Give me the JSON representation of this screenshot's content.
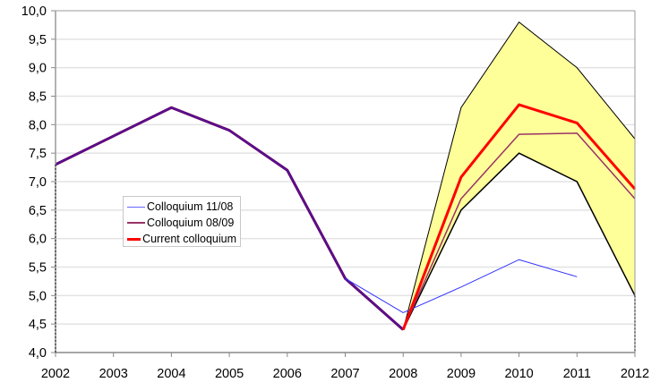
{
  "chart_data": {
    "type": "line",
    "title": "",
    "xlabel": "",
    "ylabel": "",
    "ylim": [
      4.0,
      10.0
    ],
    "yticks": [
      "4,0",
      "4,5",
      "5,0",
      "5,5",
      "6,0",
      "6,5",
      "7,0",
      "7,5",
      "8,0",
      "8,5",
      "9,0",
      "9,5",
      "10,0"
    ],
    "x": [
      2002,
      2003,
      2004,
      2005,
      2006,
      2007,
      2008,
      2009,
      2010,
      2011,
      2012
    ],
    "xticks": [
      "2002",
      "2003",
      "2004",
      "2005",
      "2006",
      "2007",
      "2008",
      "2009",
      "2010",
      "2011",
      "2012"
    ],
    "grid": true,
    "legend_position": "inside-left-middle",
    "historical": {
      "x": [
        2002,
        2003,
        2004,
        2005,
        2006,
        2007,
        2008
      ],
      "values": [
        7.3,
        7.8,
        8.3,
        7.9,
        7.2,
        5.3,
        4.4
      ],
      "color": "#660066"
    },
    "band": {
      "name": "Forecast range",
      "color": "#ffff99",
      "x": [
        2008,
        2009,
        2010,
        2011,
        2012
      ],
      "upper": [
        4.4,
        8.3,
        9.8,
        9.0,
        7.75
      ],
      "lower": [
        4.4,
        6.5,
        7.5,
        7.0,
        5.0
      ]
    },
    "series": [
      {
        "name": "Colloquium 11/08",
        "color": "#3333ff",
        "width": 1,
        "x": [
          2007,
          2008,
          2009,
          2010,
          2011
        ],
        "values": [
          5.3,
          4.7,
          5.15,
          5.63,
          5.33
        ]
      },
      {
        "name": "Colloquium 08/09",
        "color": "#993366",
        "width": 1.5,
        "x": [
          2008,
          2009,
          2010,
          2011,
          2012
        ],
        "values": [
          4.4,
          6.7,
          7.83,
          7.85,
          6.7
        ]
      },
      {
        "name": "Current colloquium",
        "color": "#ff0000",
        "width": 3,
        "x": [
          2008,
          2009,
          2010,
          2011,
          2012
        ],
        "values": [
          4.4,
          7.08,
          8.35,
          8.03,
          6.87
        ]
      }
    ]
  },
  "legend": {
    "items": [
      {
        "label": "Colloquium 11/08",
        "color": "#6666ff",
        "thickness": 1
      },
      {
        "label": "Colloquium 08/09",
        "color": "#993366",
        "thickness": 2
      },
      {
        "label": "Current colloquium",
        "color": "#ff0000",
        "thickness": 3
      }
    ]
  }
}
